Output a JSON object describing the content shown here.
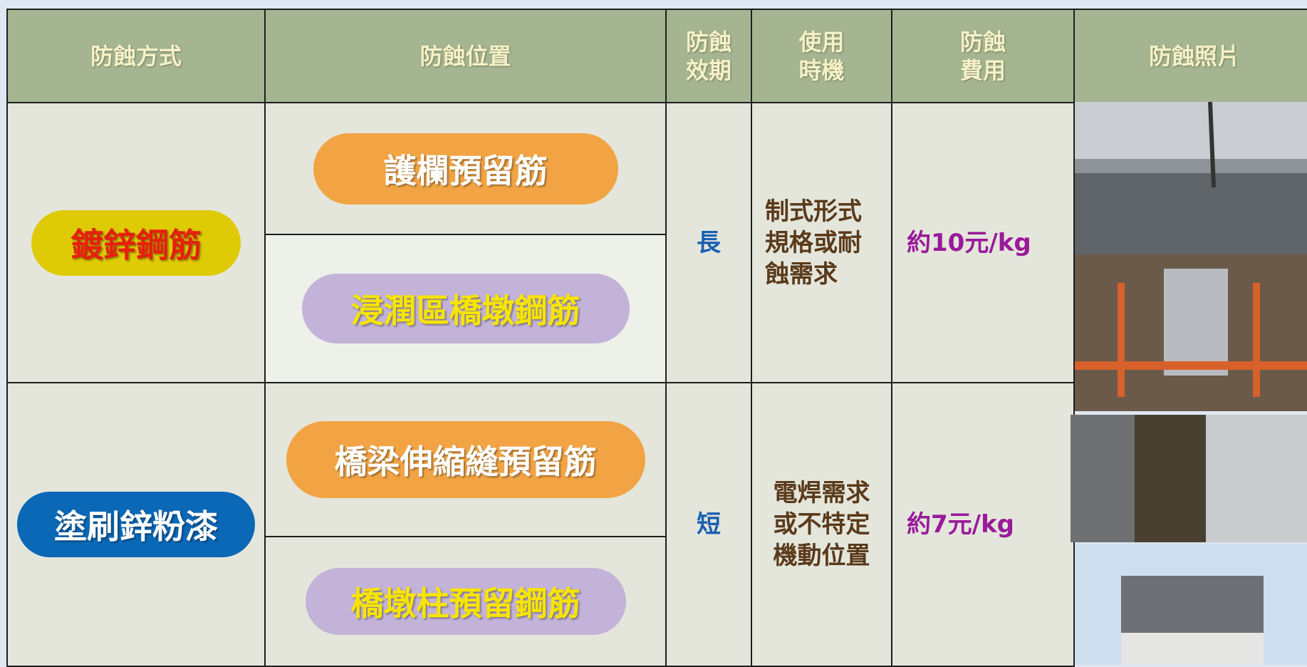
{
  "header": [
    [
      "防蝕方式"
    ],
    [
      "防蝕位置"
    ],
    [
      "防蝕",
      "效期"
    ],
    [
      "使用",
      "時機"
    ],
    [
      "防蝕",
      "費用"
    ],
    [
      "防蝕照片"
    ]
  ],
  "rows": [
    {
      "method": "鍍鋅鋼筋",
      "locations": [
        "護欄預留筋",
        "浸潤區橋墩鋼筋"
      ],
      "duration": "長",
      "timing": [
        "制式形式",
        "規格或耐",
        "蝕需求"
      ],
      "cost": "約10元/kg"
    },
    {
      "method": "塗刷鋅粉漆",
      "locations": [
        "橋梁伸縮縫預留筋",
        "橋墩柱預留鋼筋"
      ],
      "duration": "短",
      "timing": [
        "電焊需求",
        "或不特定",
        "機動位置"
      ],
      "cost": "約7元/kg"
    }
  ]
}
